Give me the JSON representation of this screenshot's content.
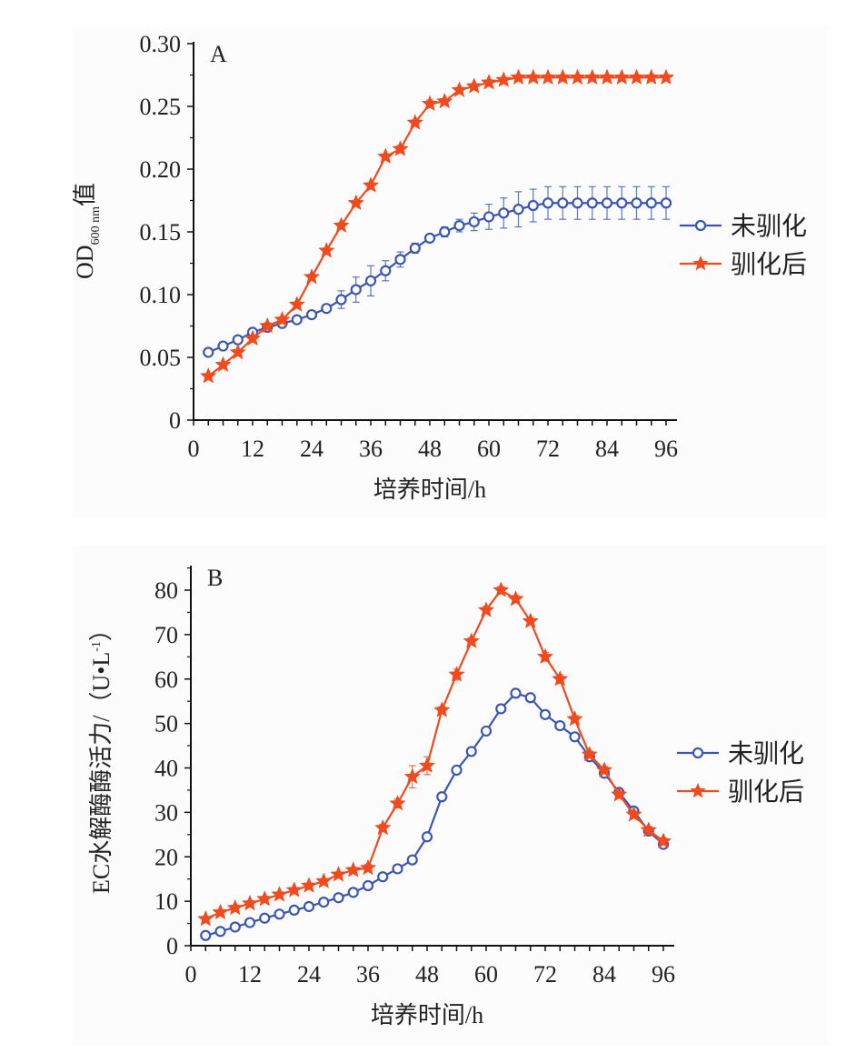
{
  "chart_data": [
    {
      "type": "line",
      "panel_label": "A",
      "title": "",
      "xlabel": "培养时间/h",
      "ylabel": "OD600 nm值",
      "ylabel_main": "OD",
      "ylabel_sub": "600 nm",
      "ylabel_suffix": "值",
      "xlim": [
        0,
        96
      ],
      "ylim": [
        0,
        0.3
      ],
      "xticks": [
        0,
        12,
        24,
        36,
        48,
        60,
        72,
        84,
        96
      ],
      "xtick_labels": [
        "0",
        "12",
        "24",
        "36",
        "48",
        "60",
        "72",
        "84",
        "96"
      ],
      "yticks": [
        0,
        0.05,
        0.1,
        0.15,
        0.2,
        0.25,
        0.3
      ],
      "ytick_labels": [
        "0",
        "0.05",
        "0.10",
        "0.15",
        "0.20",
        "0.25",
        "0.30"
      ],
      "grid": false,
      "legend_position": "right",
      "x": [
        3,
        6,
        9,
        12,
        15,
        18,
        21,
        24,
        27,
        30,
        33,
        36,
        39,
        42,
        45,
        48,
        51,
        54,
        57,
        60,
        63,
        66,
        69,
        72,
        75,
        78,
        81,
        84,
        87,
        90,
        93,
        96
      ],
      "series": [
        {
          "name": "未驯化",
          "color": "#3a56b0",
          "marker": "circle",
          "values": [
            0.054,
            0.059,
            0.064,
            0.07,
            0.074,
            0.077,
            0.08,
            0.084,
            0.089,
            0.096,
            0.104,
            0.111,
            0.119,
            0.128,
            0.137,
            0.145,
            0.15,
            0.155,
            0.158,
            0.162,
            0.165,
            0.168,
            0.171,
            0.173,
            0.173,
            0.173,
            0.173,
            0.173,
            0.173,
            0.173,
            0.173,
            0.173
          ],
          "errors": [
            0.002,
            0.002,
            0.002,
            0.002,
            0.002,
            0.002,
            0.002,
            0.002,
            0.003,
            0.007,
            0.01,
            0.012,
            0.008,
            0.006,
            0.004,
            0.003,
            0.004,
            0.005,
            0.007,
            0.01,
            0.012,
            0.014,
            0.013,
            0.013,
            0.013,
            0.013,
            0.013,
            0.013,
            0.013,
            0.013,
            0.013,
            0.013
          ]
        },
        {
          "name": "驯化后",
          "color": "#f04a1f",
          "marker": "star",
          "values": [
            0.035,
            0.044,
            0.054,
            0.065,
            0.075,
            0.08,
            0.092,
            0.114,
            0.135,
            0.155,
            0.173,
            0.187,
            0.21,
            0.216,
            0.237,
            0.252,
            0.254,
            0.263,
            0.266,
            0.269,
            0.271,
            0.273,
            0.273,
            0.273,
            0.273,
            0.273,
            0.273,
            0.273,
            0.273,
            0.273,
            0.273,
            0.273
          ],
          "errors": [
            0.001,
            0.001,
            0.001,
            0.001,
            0.001,
            0.001,
            0.001,
            0.002,
            0.002,
            0.002,
            0.002,
            0.002,
            0.002,
            0.003,
            0.002,
            0.003,
            0.002,
            0.002,
            0.001,
            0.001,
            0.001,
            0.001,
            0.001,
            0.001,
            0.001,
            0.001,
            0.001,
            0.001,
            0.001,
            0.001,
            0.001,
            0.001
          ]
        }
      ]
    },
    {
      "type": "line",
      "panel_label": "B",
      "title": "",
      "xlabel": "培养时间/h",
      "ylabel": "EC水解酶酶活力/（U•L-1）",
      "ylabel_main": "EC水解酶酶活力/（U•L",
      "ylabel_sup": "-1",
      "ylabel_suffix": "）",
      "xlim": [
        0,
        96
      ],
      "ylim": [
        0,
        85
      ],
      "xticks": [
        0,
        12,
        24,
        36,
        48,
        60,
        72,
        84,
        96
      ],
      "xtick_labels": [
        "0",
        "12",
        "24",
        "36",
        "48",
        "60",
        "72",
        "84",
        "96"
      ],
      "yticks": [
        0,
        10,
        20,
        30,
        40,
        50,
        60,
        70,
        80
      ],
      "ytick_labels": [
        "0",
        "10",
        "20",
        "30",
        "40",
        "50",
        "60",
        "70",
        "80"
      ],
      "grid": false,
      "legend_position": "right",
      "x": [
        3,
        6,
        9,
        12,
        15,
        18,
        21,
        24,
        27,
        30,
        33,
        36,
        39,
        42,
        45,
        48,
        51,
        54,
        57,
        60,
        63,
        66,
        69,
        72,
        75,
        78,
        81,
        84,
        87,
        90,
        93,
        96
      ],
      "series": [
        {
          "name": "未驯化",
          "color": "#3a56b0",
          "marker": "circle",
          "values": [
            2.3,
            3.2,
            4.2,
            5.2,
            6.2,
            7.1,
            8.0,
            8.8,
            9.8,
            10.8,
            12.0,
            13.5,
            15.5,
            17.3,
            19.3,
            24.5,
            33.5,
            39.5,
            43.7,
            48.3,
            53.3,
            56.8,
            55.8,
            52.0,
            49.5,
            47.0,
            42.5,
            38.8,
            34.5,
            30.3,
            25.8,
            22.8
          ],
          "errors": [
            0.3,
            0.3,
            0.3,
            0.3,
            0.3,
            0.3,
            0.3,
            0.3,
            0.3,
            0.3,
            0.3,
            0.4,
            0.4,
            0.4,
            0.5,
            0.5,
            0.5,
            0.5,
            0.5,
            0.5,
            0.5,
            0.6,
            0.6,
            0.5,
            0.5,
            0.5,
            0.5,
            0.5,
            0.5,
            0.5,
            0.5,
            0.5
          ]
        },
        {
          "name": "驯化后",
          "color": "#f04a1f",
          "marker": "star",
          "values": [
            6.0,
            7.5,
            8.5,
            9.5,
            10.5,
            11.5,
            12.5,
            13.5,
            14.5,
            16.0,
            17.0,
            17.5,
            26.5,
            32.0,
            38.0,
            40.5,
            53.0,
            61.0,
            68.5,
            75.5,
            80.0,
            78.0,
            73.0,
            65.0,
            60.0,
            51.0,
            43.0,
            39.5,
            34.0,
            29.5,
            26.0,
            23.5
          ],
          "errors": [
            0.4,
            0.4,
            0.4,
            0.4,
            0.4,
            0.4,
            0.4,
            0.4,
            0.5,
            0.5,
            0.5,
            0.8,
            0.8,
            1.0,
            2.5,
            2.0,
            0.8,
            1.2,
            0.8,
            0.8,
            0.8,
            0.8,
            0.8,
            1.0,
            1.0,
            0.8,
            0.8,
            0.8,
            0.8,
            0.8,
            0.8,
            0.8
          ]
        }
      ]
    }
  ]
}
